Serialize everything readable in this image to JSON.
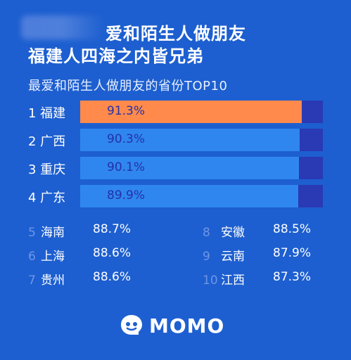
{
  "header": {
    "title_line1": "爱和陌生人做朋友",
    "title_line2": "福建人四海之内皆兄弟",
    "subtitle": "最爱和陌生人做朋友的省份TOP10"
  },
  "colors": {
    "background": "#1d5fd0",
    "bar_highlight": "#ff8a4c",
    "bar_fill": "#2f86ef",
    "bar_track": "#2a39b4",
    "rank_number_muted": "#6f95e8"
  },
  "chart_data": {
    "type": "bar",
    "title": "最爱和陌生人做朋友的省份TOP10",
    "categories": [
      "福建",
      "广西",
      "重庆",
      "广东",
      "海南",
      "上海",
      "贵州",
      "安徽",
      "云南",
      "江西"
    ],
    "ranks": [
      "1",
      "2",
      "3",
      "4",
      "5",
      "6",
      "7",
      "8",
      "9",
      "10"
    ],
    "values": [
      91.3,
      90.3,
      90.1,
      89.9,
      88.7,
      88.6,
      88.6,
      88.5,
      87.9,
      87.3
    ],
    "value_labels": [
      "91.3%",
      "90.3%",
      "90.1%",
      "89.9%",
      "88.7%",
      "88.6%",
      "88.6%",
      "88.5%",
      "87.9%",
      "87.3%"
    ],
    "unit": "%",
    "bar_scale_max": 100,
    "bars_shown": 4
  },
  "brand": {
    "logo_text": "MOMO",
    "icon": "momo-chat-bubble-icon"
  }
}
